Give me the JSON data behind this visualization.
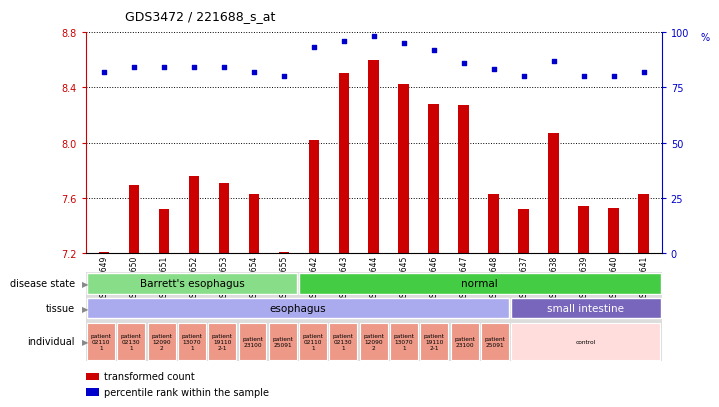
{
  "title": "GDS3472 / 221688_s_at",
  "samples": [
    "GSM327649",
    "GSM327650",
    "GSM327651",
    "GSM327652",
    "GSM327653",
    "GSM327654",
    "GSM327655",
    "GSM327642",
    "GSM327643",
    "GSM327644",
    "GSM327645",
    "GSM327646",
    "GSM327647",
    "GSM327648",
    "GSM327637",
    "GSM327638",
    "GSM327639",
    "GSM327640",
    "GSM327641"
  ],
  "bar_values": [
    7.21,
    7.69,
    7.52,
    7.76,
    7.71,
    7.63,
    7.21,
    8.02,
    8.5,
    8.6,
    8.42,
    8.28,
    8.27,
    7.63,
    7.52,
    8.07,
    7.54,
    7.53,
    7.63
  ],
  "dot_values": [
    82,
    84,
    84,
    84,
    84,
    82,
    80,
    93,
    96,
    98,
    95,
    92,
    86,
    83,
    80,
    87,
    80,
    80,
    82
  ],
  "ylim_left": [
    7.2,
    8.8
  ],
  "ylim_right": [
    0,
    100
  ],
  "yticks_left": [
    7.2,
    7.6,
    8.0,
    8.4,
    8.8
  ],
  "yticks_right": [
    0,
    25,
    50,
    75,
    100
  ],
  "bar_color": "#cc0000",
  "dot_color": "#0000cc",
  "bg_color": "#e8e8e8",
  "plot_bg": "#ffffff",
  "disease_state_labels": [
    {
      "label": "Barrett's esophagus",
      "start": 0,
      "end": 7,
      "color": "#88dd88"
    },
    {
      "label": "normal",
      "start": 7,
      "end": 19,
      "color": "#44cc44"
    }
  ],
  "tissue_labels": [
    {
      "label": "esophagus",
      "start": 0,
      "end": 14,
      "color": "#aaaaee"
    },
    {
      "label": "small intestine",
      "start": 14,
      "end": 19,
      "color": "#7766bb"
    }
  ],
  "individual_labels": [
    {
      "label": "patient\n02110\n1",
      "start": 0,
      "end": 1,
      "color": "#ee9988"
    },
    {
      "label": "patient\n02130\n1",
      "start": 1,
      "end": 2,
      "color": "#ee9988"
    },
    {
      "label": "patient\n12090\n2",
      "start": 2,
      "end": 3,
      "color": "#ee9988"
    },
    {
      "label": "patient\n13070\n1",
      "start": 3,
      "end": 4,
      "color": "#ee9988"
    },
    {
      "label": "patient\n19110\n2-1",
      "start": 4,
      "end": 5,
      "color": "#ee9988"
    },
    {
      "label": "patient\n23100",
      "start": 5,
      "end": 6,
      "color": "#ee9988"
    },
    {
      "label": "patient\n25091",
      "start": 6,
      "end": 7,
      "color": "#ee9988"
    },
    {
      "label": "patient\n02110\n1",
      "start": 7,
      "end": 8,
      "color": "#ee9988"
    },
    {
      "label": "patient\n02130\n1",
      "start": 8,
      "end": 9,
      "color": "#ee9988"
    },
    {
      "label": "patient\n12090\n2",
      "start": 9,
      "end": 10,
      "color": "#ee9988"
    },
    {
      "label": "patient\n13070\n1",
      "start": 10,
      "end": 11,
      "color": "#ee9988"
    },
    {
      "label": "patient\n19110\n2-1",
      "start": 11,
      "end": 12,
      "color": "#ee9988"
    },
    {
      "label": "patient\n23100",
      "start": 12,
      "end": 13,
      "color": "#ee9988"
    },
    {
      "label": "patient\n25091",
      "start": 13,
      "end": 14,
      "color": "#ee9988"
    },
    {
      "label": "control",
      "start": 14,
      "end": 19,
      "color": "#ffdddd"
    }
  ],
  "legend_items": [
    {
      "label": "transformed count",
      "color": "#cc0000"
    },
    {
      "label": "percentile rank within the sample",
      "color": "#0000cc"
    }
  ]
}
